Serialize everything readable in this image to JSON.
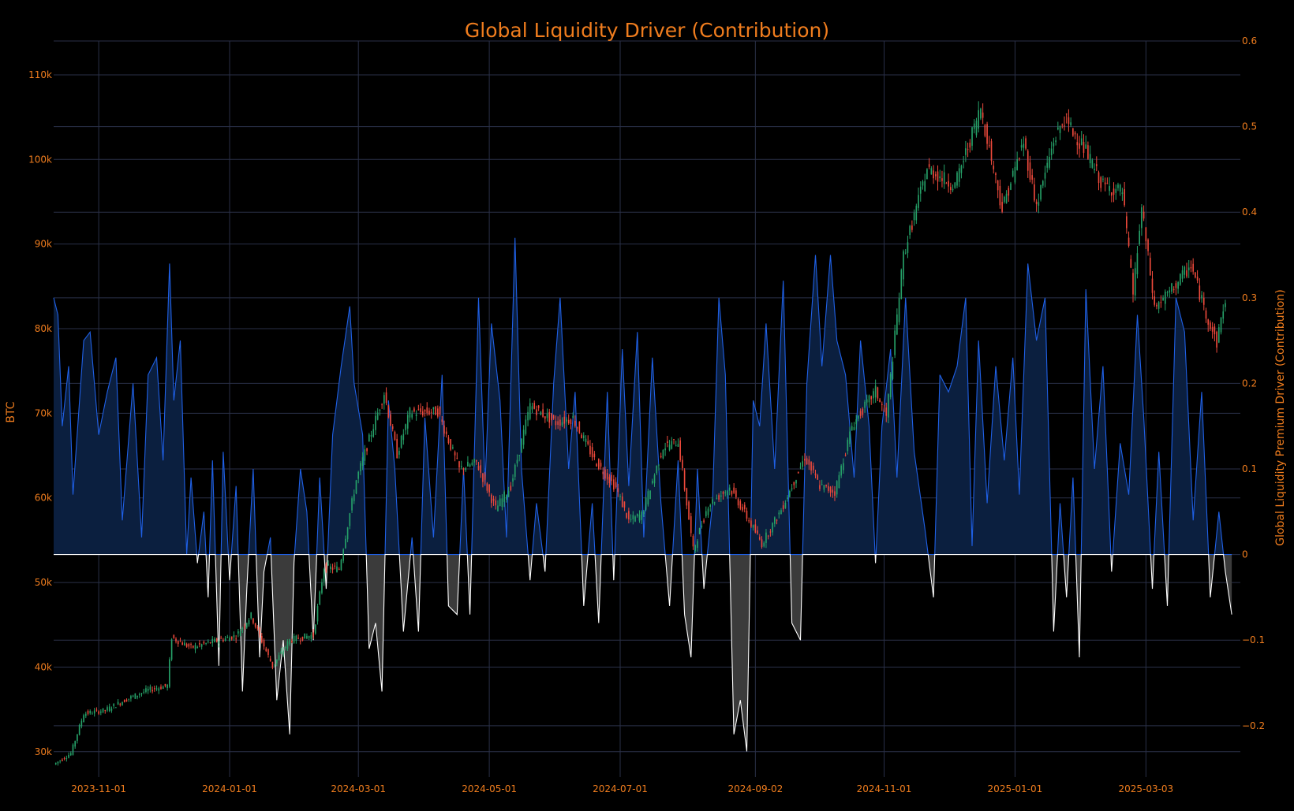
{
  "chart_data": {
    "type": "line",
    "title": "Global Liquidity Driver (Contribution)",
    "ylabel": "BTC",
    "y2label": "Global Liquidity Premium Driver (Contribution)",
    "x_ticks": [
      "2023-11-01",
      "2024-01-01",
      "2024-03-01",
      "2024-05-01",
      "2024-07-01",
      "2024-09-02",
      "2024-11-01",
      "2025-01-01",
      "2025-03-03"
    ],
    "y_ticks": [
      "30k",
      "40k",
      "50k",
      "60k",
      "70k",
      "80k",
      "90k",
      "100k",
      "110k"
    ],
    "y2_ticks": [
      "−0.2",
      "−0.1",
      "0",
      "0.1",
      "0.2",
      "0.3",
      "0.4",
      "0.5",
      "0.6"
    ],
    "xlim": [
      "2023-10-11",
      "2025-04-16"
    ],
    "ylim": [
      27000,
      114000
    ],
    "y2lim": [
      -0.26,
      0.6
    ],
    "grid": true,
    "colors": {
      "up_candle": "#26a269",
      "down_candle": "#ef4a3c",
      "positive_fill": "#0b1f3f",
      "positive_line": "#1f60e6",
      "negative_fill": "#3b3b3b",
      "negative_line": "#ffffff",
      "text": "#f07d1e",
      "grid": "#2a3048"
    },
    "series": [
      {
        "name": "BTC",
        "kind": "candlestick",
        "points": [
          [
            "2023-10-12",
            28500
          ],
          [
            "2023-10-20",
            29800
          ],
          [
            "2023-10-26",
            34500
          ],
          [
            "2023-11-05",
            34900
          ],
          [
            "2023-11-15",
            36200
          ],
          [
            "2023-11-25",
            37300
          ],
          [
            "2023-12-04",
            37800
          ],
          [
            "2023-12-06",
            43500
          ],
          [
            "2023-12-15",
            42300
          ],
          [
            "2023-12-28",
            43200
          ],
          [
            "2024-01-05",
            43700
          ],
          [
            "2024-01-12",
            46100
          ],
          [
            "2024-01-22",
            40100
          ],
          [
            "2024-01-30",
            43200
          ],
          [
            "2024-02-10",
            43800
          ],
          [
            "2024-02-15",
            51800
          ],
          [
            "2024-02-22",
            51600
          ],
          [
            "2024-03-01",
            62100
          ],
          [
            "2024-03-08",
            67700
          ],
          [
            "2024-03-14",
            72400
          ],
          [
            "2024-03-20",
            65200
          ],
          [
            "2024-03-26",
            70100
          ],
          [
            "2024-04-08",
            70200
          ],
          [
            "2024-04-18",
            63400
          ],
          [
            "2024-04-26",
            64200
          ],
          [
            "2024-05-05",
            58700
          ],
          [
            "2024-05-12",
            61400
          ],
          [
            "2024-05-21",
            70900
          ],
          [
            "2024-06-02",
            68900
          ],
          [
            "2024-06-10",
            69400
          ],
          [
            "2024-06-20",
            64500
          ],
          [
            "2024-06-30",
            61200
          ],
          [
            "2024-07-06",
            57300
          ],
          [
            "2024-07-12",
            58000
          ],
          [
            "2024-07-22",
            66000
          ],
          [
            "2024-07-29",
            66700
          ],
          [
            "2024-08-05",
            53800
          ],
          [
            "2024-08-12",
            59200
          ],
          [
            "2024-08-22",
            61200
          ],
          [
            "2024-08-27",
            59100
          ],
          [
            "2024-09-06",
            54600
          ],
          [
            "2024-09-15",
            58600
          ],
          [
            "2024-09-26",
            64800
          ],
          [
            "2024-10-03",
            61400
          ],
          [
            "2024-10-10",
            60700
          ],
          [
            "2024-10-18",
            68500
          ],
          [
            "2024-10-29",
            72700
          ],
          [
            "2024-11-03",
            69500
          ],
          [
            "2024-11-11",
            88700
          ],
          [
            "2024-11-22",
            98900
          ],
          [
            "2024-12-05",
            96900
          ],
          [
            "2024-12-17",
            106100
          ],
          [
            "2024-12-27",
            94200
          ],
          [
            "2025-01-06",
            102100
          ],
          [
            "2025-01-12",
            94500
          ],
          [
            "2025-01-20",
            102200
          ],
          [
            "2025-01-25",
            104800
          ],
          [
            "2025-02-03",
            101400
          ],
          [
            "2025-02-12",
            96900
          ],
          [
            "2025-02-21",
            96200
          ],
          [
            "2025-02-26",
            84200
          ],
          [
            "2025-03-02",
            94200
          ],
          [
            "2025-03-08",
            82500
          ],
          [
            "2025-03-14",
            84000
          ],
          [
            "2025-03-25",
            87500
          ],
          [
            "2025-03-31",
            82500
          ],
          [
            "2025-04-06",
            78300
          ],
          [
            "2025-04-09",
            82600
          ]
        ]
      },
      {
        "name": "Global Liquidity Premium Driver (Contribution)",
        "kind": "area",
        "points": [
          [
            "2023-10-11",
            0.3
          ],
          [
            "2023-10-13",
            0.28
          ],
          [
            "2023-10-15",
            0.15
          ],
          [
            "2023-10-18",
            0.22
          ],
          [
            "2023-10-20",
            0.07
          ],
          [
            "2023-10-25",
            0.25
          ],
          [
            "2023-10-28",
            0.26
          ],
          [
            "2023-11-01",
            0.14
          ],
          [
            "2023-11-05",
            0.19
          ],
          [
            "2023-11-09",
            0.23
          ],
          [
            "2023-11-12",
            0.04
          ],
          [
            "2023-11-17",
            0.2
          ],
          [
            "2023-11-21",
            0.02
          ],
          [
            "2023-11-24",
            0.21
          ],
          [
            "2023-11-28",
            0.23
          ],
          [
            "2023-12-01",
            0.11
          ],
          [
            "2023-12-04",
            0.34
          ],
          [
            "2023-12-06",
            0.18
          ],
          [
            "2023-12-09",
            0.25
          ],
          [
            "2023-12-12",
            0.0
          ],
          [
            "2023-12-14",
            0.09
          ],
          [
            "2023-12-17",
            -0.01
          ],
          [
            "2023-12-20",
            0.05
          ],
          [
            "2023-12-22",
            -0.05
          ],
          [
            "2023-12-24",
            0.11
          ],
          [
            "2023-12-27",
            -0.13
          ],
          [
            "2023-12-29",
            0.12
          ],
          [
            "2024-01-01",
            -0.03
          ],
          [
            "2024-01-04",
            0.08
          ],
          [
            "2024-01-07",
            -0.16
          ],
          [
            "2024-01-09",
            -0.04
          ],
          [
            "2024-01-12",
            0.1
          ],
          [
            "2024-01-15",
            -0.12
          ],
          [
            "2024-01-17",
            -0.02
          ],
          [
            "2024-01-20",
            0.02
          ],
          [
            "2024-01-23",
            -0.17
          ],
          [
            "2024-01-26",
            -0.1
          ],
          [
            "2024-01-29",
            -0.21
          ],
          [
            "2024-01-31",
            -0.01
          ],
          [
            "2024-02-03",
            0.1
          ],
          [
            "2024-02-06",
            0.05
          ],
          [
            "2024-02-09",
            -0.1
          ],
          [
            "2024-02-12",
            0.09
          ],
          [
            "2024-02-15",
            -0.04
          ],
          [
            "2024-02-18",
            0.14
          ],
          [
            "2024-02-22",
            0.22
          ],
          [
            "2024-02-26",
            0.29
          ],
          [
            "2024-02-28",
            0.2
          ],
          [
            "2024-03-03",
            0.14
          ],
          [
            "2024-03-06",
            -0.11
          ],
          [
            "2024-03-09",
            -0.08
          ],
          [
            "2024-03-12",
            -0.16
          ],
          [
            "2024-03-15",
            0.18
          ],
          [
            "2024-03-18",
            0.1
          ],
          [
            "2024-03-22",
            -0.09
          ],
          [
            "2024-03-26",
            0.02
          ],
          [
            "2024-03-29",
            -0.09
          ],
          [
            "2024-04-01",
            0.16
          ],
          [
            "2024-04-05",
            0.02
          ],
          [
            "2024-04-09",
            0.21
          ],
          [
            "2024-04-12",
            -0.06
          ],
          [
            "2024-04-16",
            -0.07
          ],
          [
            "2024-04-19",
            0.1
          ],
          [
            "2024-04-22",
            -0.07
          ],
          [
            "2024-04-26",
            0.3
          ],
          [
            "2024-04-29",
            0.08
          ],
          [
            "2024-05-02",
            0.27
          ],
          [
            "2024-05-06",
            0.18
          ],
          [
            "2024-05-09",
            0.02
          ],
          [
            "2024-05-13",
            0.37
          ],
          [
            "2024-05-16",
            0.1
          ],
          [
            "2024-05-20",
            -0.03
          ],
          [
            "2024-05-23",
            0.06
          ],
          [
            "2024-05-27",
            -0.02
          ],
          [
            "2024-05-31",
            0.2
          ],
          [
            "2024-06-03",
            0.3
          ],
          [
            "2024-06-07",
            0.1
          ],
          [
            "2024-06-10",
            0.19
          ],
          [
            "2024-06-14",
            -0.06
          ],
          [
            "2024-06-18",
            0.06
          ],
          [
            "2024-06-21",
            -0.08
          ],
          [
            "2024-06-25",
            0.19
          ],
          [
            "2024-06-28",
            -0.03
          ],
          [
            "2024-07-02",
            0.24
          ],
          [
            "2024-07-05",
            0.08
          ],
          [
            "2024-07-09",
            0.26
          ],
          [
            "2024-07-12",
            0.02
          ],
          [
            "2024-07-16",
            0.23
          ],
          [
            "2024-07-20",
            0.06
          ],
          [
            "2024-07-24",
            -0.06
          ],
          [
            "2024-07-28",
            0.11
          ],
          [
            "2024-07-31",
            -0.07
          ],
          [
            "2024-08-03",
            -0.12
          ],
          [
            "2024-08-06",
            0.1
          ],
          [
            "2024-08-09",
            -0.04
          ],
          [
            "2024-08-13",
            0.06
          ],
          [
            "2024-08-16",
            0.3
          ],
          [
            "2024-08-19",
            0.21
          ],
          [
            "2024-08-23",
            -0.21
          ],
          [
            "2024-08-26",
            -0.17
          ],
          [
            "2024-08-29",
            -0.23
          ],
          [
            "2024-09-01",
            0.18
          ],
          [
            "2024-09-04",
            0.15
          ],
          [
            "2024-09-07",
            0.27
          ],
          [
            "2024-09-11",
            0.1
          ],
          [
            "2024-09-15",
            0.32
          ],
          [
            "2024-09-19",
            -0.08
          ],
          [
            "2024-09-23",
            -0.1
          ],
          [
            "2024-09-26",
            0.2
          ],
          [
            "2024-09-30",
            0.35
          ],
          [
            "2024-10-03",
            0.22
          ],
          [
            "2024-10-07",
            0.35
          ],
          [
            "2024-10-10",
            0.25
          ],
          [
            "2024-10-14",
            0.21
          ],
          [
            "2024-10-18",
            0.09
          ],
          [
            "2024-10-21",
            0.25
          ],
          [
            "2024-10-25",
            0.15
          ],
          [
            "2024-10-28",
            -0.01
          ],
          [
            "2024-10-31",
            0.15
          ],
          [
            "2024-11-04",
            0.24
          ],
          [
            "2024-11-07",
            0.09
          ],
          [
            "2024-11-11",
            0.3
          ],
          [
            "2024-11-15",
            0.12
          ],
          [
            "2024-11-20",
            0.03
          ],
          [
            "2024-11-24",
            -0.05
          ],
          [
            "2024-11-27",
            0.21
          ],
          [
            "2024-12-01",
            0.19
          ],
          [
            "2024-12-05",
            0.22
          ],
          [
            "2024-12-09",
            0.3
          ],
          [
            "2024-12-12",
            0.01
          ],
          [
            "2024-12-15",
            0.25
          ],
          [
            "2024-12-19",
            0.06
          ],
          [
            "2024-12-23",
            0.22
          ],
          [
            "2024-12-27",
            0.11
          ],
          [
            "2024-12-31",
            0.23
          ],
          [
            "2025-01-03",
            0.07
          ],
          [
            "2025-01-07",
            0.34
          ],
          [
            "2025-01-11",
            0.25
          ],
          [
            "2025-01-15",
            0.3
          ],
          [
            "2025-01-19",
            -0.09
          ],
          [
            "2025-01-22",
            0.06
          ],
          [
            "2025-01-25",
            -0.05
          ],
          [
            "2025-01-28",
            0.09
          ],
          [
            "2025-01-31",
            -0.12
          ],
          [
            "2025-02-03",
            0.31
          ],
          [
            "2025-02-07",
            0.1
          ],
          [
            "2025-02-11",
            0.22
          ],
          [
            "2025-02-15",
            -0.02
          ],
          [
            "2025-02-19",
            0.13
          ],
          [
            "2025-02-23",
            0.07
          ],
          [
            "2025-02-27",
            0.28
          ],
          [
            "2025-03-02",
            0.16
          ],
          [
            "2025-03-06",
            -0.04
          ],
          [
            "2025-03-09",
            0.12
          ],
          [
            "2025-03-13",
            -0.06
          ],
          [
            "2025-03-17",
            0.3
          ],
          [
            "2025-03-21",
            0.26
          ],
          [
            "2025-03-25",
            0.04
          ],
          [
            "2025-03-29",
            0.19
          ],
          [
            "2025-04-02",
            -0.05
          ],
          [
            "2025-04-06",
            0.05
          ],
          [
            "2025-04-09",
            -0.02
          ],
          [
            "2025-04-12",
            -0.07
          ]
        ]
      }
    ]
  }
}
